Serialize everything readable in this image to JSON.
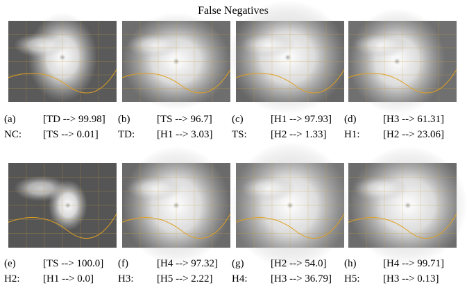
{
  "title": "False Negatives",
  "panels": [
    {
      "label": "(a)",
      "prediction": "[TD --> 99.98]",
      "true_class": "NC:",
      "second": "[TS --> 0.01]"
    },
    {
      "label": "(b)",
      "prediction": "[TS --> 96.7]",
      "true_class": "TD:",
      "second": "[H1 --> 3.03]"
    },
    {
      "label": "(c)",
      "prediction": "[H1 --> 97.93]",
      "true_class": "TS:",
      "second": "[H2 --> 1.33]"
    },
    {
      "label": "(d)",
      "prediction": "[H3 --> 61.31]",
      "true_class": "H1:",
      "second": "[H2 --> 23.06]"
    },
    {
      "label": "(e)",
      "prediction": "[TS --> 100.0]",
      "true_class": "H2:",
      "second": "[H1 --> 0.0]"
    },
    {
      "label": "(f)",
      "prediction": "[H4 --> 97.32]",
      "true_class": "H3:",
      "second": "[H5 --> 2.22]"
    },
    {
      "label": "(g)",
      "prediction": "[H2 --> 54.0]",
      "true_class": "H4:",
      "second": "[H3 --> 36.79]"
    },
    {
      "label": "(h)",
      "prediction": "[H4 --> 99.71]",
      "true_class": "H5:",
      "second": "[H3 --> 0.13]"
    }
  ]
}
